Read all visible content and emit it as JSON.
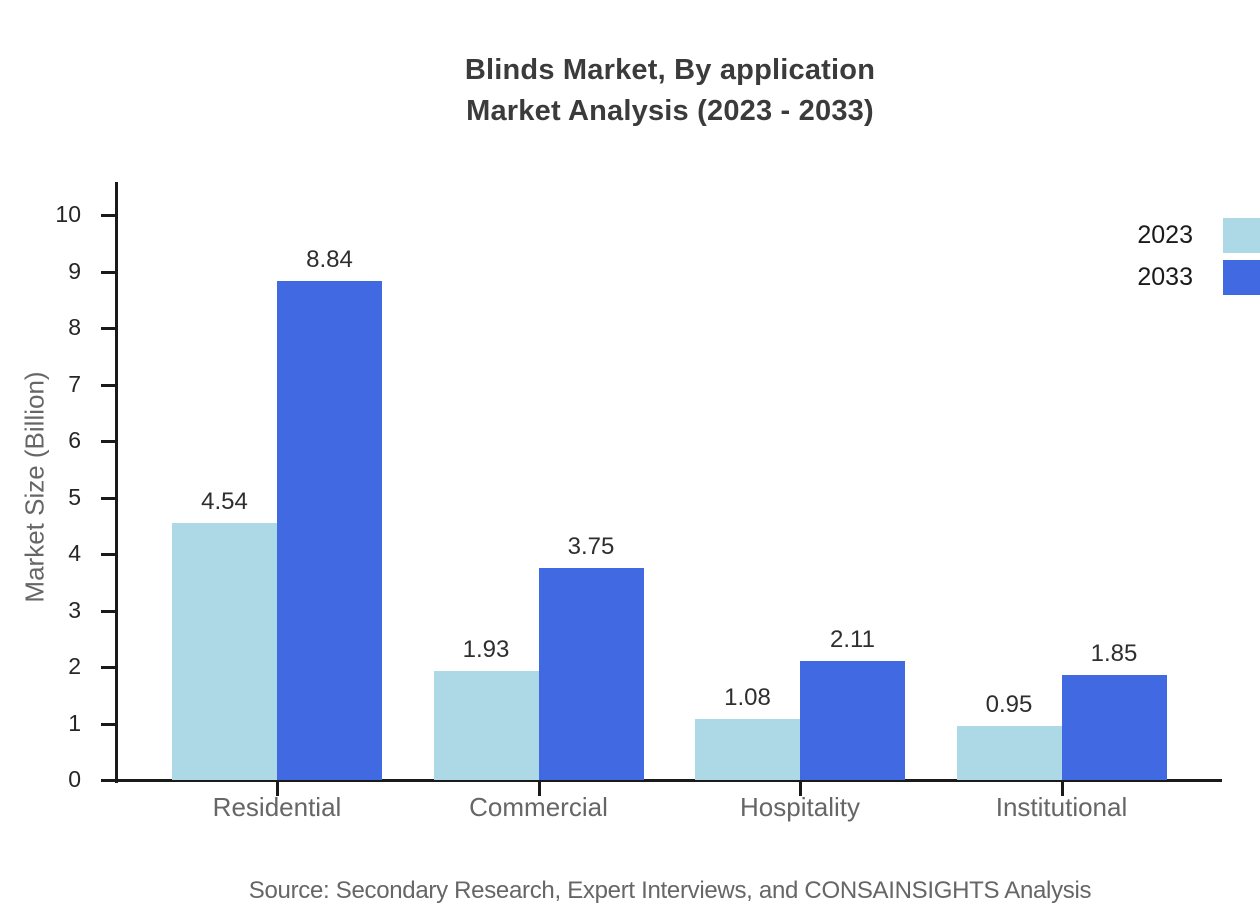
{
  "chart_data": {
    "type": "bar",
    "title_lines": [
      "Blinds Market, By application",
      "Market Analysis (2023 - 2033)"
    ],
    "categories": [
      "Residential",
      "Commercial",
      "Hospitality",
      "Institutional"
    ],
    "series": [
      {
        "name": "2023",
        "color": "#add8e6",
        "values": [
          4.54,
          1.93,
          1.08,
          0.95
        ]
      },
      {
        "name": "2033",
        "color": "#4169e1",
        "values": [
          8.84,
          3.75,
          2.11,
          1.85
        ]
      }
    ],
    "ylabel": "Market Size (Billion)",
    "xlabel": "",
    "ylim": [
      0,
      10
    ],
    "yticks": [
      0,
      1,
      2,
      3,
      4,
      5,
      6,
      7,
      8,
      9,
      10
    ],
    "grid": false,
    "legend_position": "top-right",
    "value_label_decimals": 2,
    "source": "Source: Secondary Research, Expert Interviews, and CONSAINSIGHTS Analysis"
  },
  "colors": {
    "background": "#ffffff",
    "title": "#3b3b3b",
    "axis": "#1a1a1a",
    "tick_label": "#262626",
    "category_label": "#666666",
    "value_label": "#2e2e2e",
    "series_2023": "#add8e6",
    "series_2033": "#4169e1"
  }
}
